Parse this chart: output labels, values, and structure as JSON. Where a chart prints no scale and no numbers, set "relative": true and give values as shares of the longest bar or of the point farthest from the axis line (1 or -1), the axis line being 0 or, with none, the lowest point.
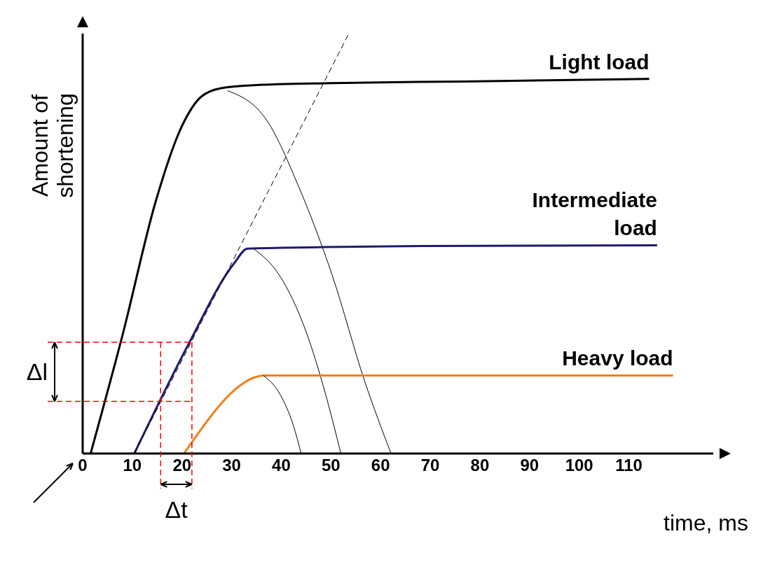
{
  "chart_data": {
    "type": "line",
    "relative": true,
    "xlabel": "time, ms",
    "ylabel": "Amount of shortening",
    "xlim": [
      0,
      127
    ],
    "xticks": [
      0,
      10,
      20,
      30,
      40,
      50,
      60,
      70,
      80,
      90,
      100,
      110
    ],
    "grid": false,
    "legend": false,
    "marker": "none",
    "line_style": "solid",
    "series": [
      {
        "name": "Light load",
        "color": "#000000",
        "x": [
          1.6,
          8.2,
          14.7,
          20,
          23.9,
          27.9,
          34.5,
          50.3,
          76.6,
          114.1
        ],
        "values": [
          0,
          0.29,
          0.6,
          0.78,
          0.85,
          0.87,
          0.877,
          0.882,
          0.886,
          0.892
        ]
      },
      {
        "color": "#000000",
        "x": [
          29.2,
          37.1,
          43.7,
          50.3,
          56.8,
          62.1
        ],
        "values": [
          0.864,
          0.793,
          0.63,
          0.423,
          0.172,
          0
        ]
      },
      {
        "name": "Intermediate load",
        "color": "#1f1a6e",
        "x": [
          10.4,
          21.3,
          30.5,
          33.2,
          68.7,
          115.7
        ],
        "values": [
          0,
          0.26,
          0.453,
          0.488,
          0.494,
          0.496
        ]
      },
      {
        "color": "#000000",
        "x": [
          34.5,
          39.7,
          45,
          48.9,
          52
        ],
        "values": [
          0.487,
          0.423,
          0.29,
          0.142,
          0
        ]
      },
      {
        "name": "Heavy load",
        "color": "#f07f1e",
        "x": [
          20.4,
          35.1,
          36.4,
          118.9
        ],
        "values": [
          0,
          0.183,
          0.186,
          0.186
        ]
      },
      {
        "color": "#000000",
        "x": [
          36.4,
          39.7,
          42.4,
          44
        ],
        "values": [
          0.186,
          0.142,
          0.068,
          0
        ]
      },
      {
        "color": "#000000",
        "line_style": "dashed",
        "x": [
          10.4,
          53.6
        ],
        "values": [
          0,
          1
        ]
      }
    ],
    "ref_lines": [
      {
        "axis": "y",
        "value": 0.124,
        "color": "#ff0000",
        "line_style": "dashed"
      },
      {
        "axis": "y",
        "value": 0.265,
        "color": "#ff0000",
        "line_style": "dashed"
      },
      {
        "axis": "x",
        "value": 15.7,
        "color": "#ff0000",
        "line_style": "dashed"
      },
      {
        "axis": "x",
        "value": 22,
        "color": "#ff0000",
        "line_style": "dashed"
      }
    ],
    "annotations": [
      "Δl",
      "Δt"
    ]
  }
}
